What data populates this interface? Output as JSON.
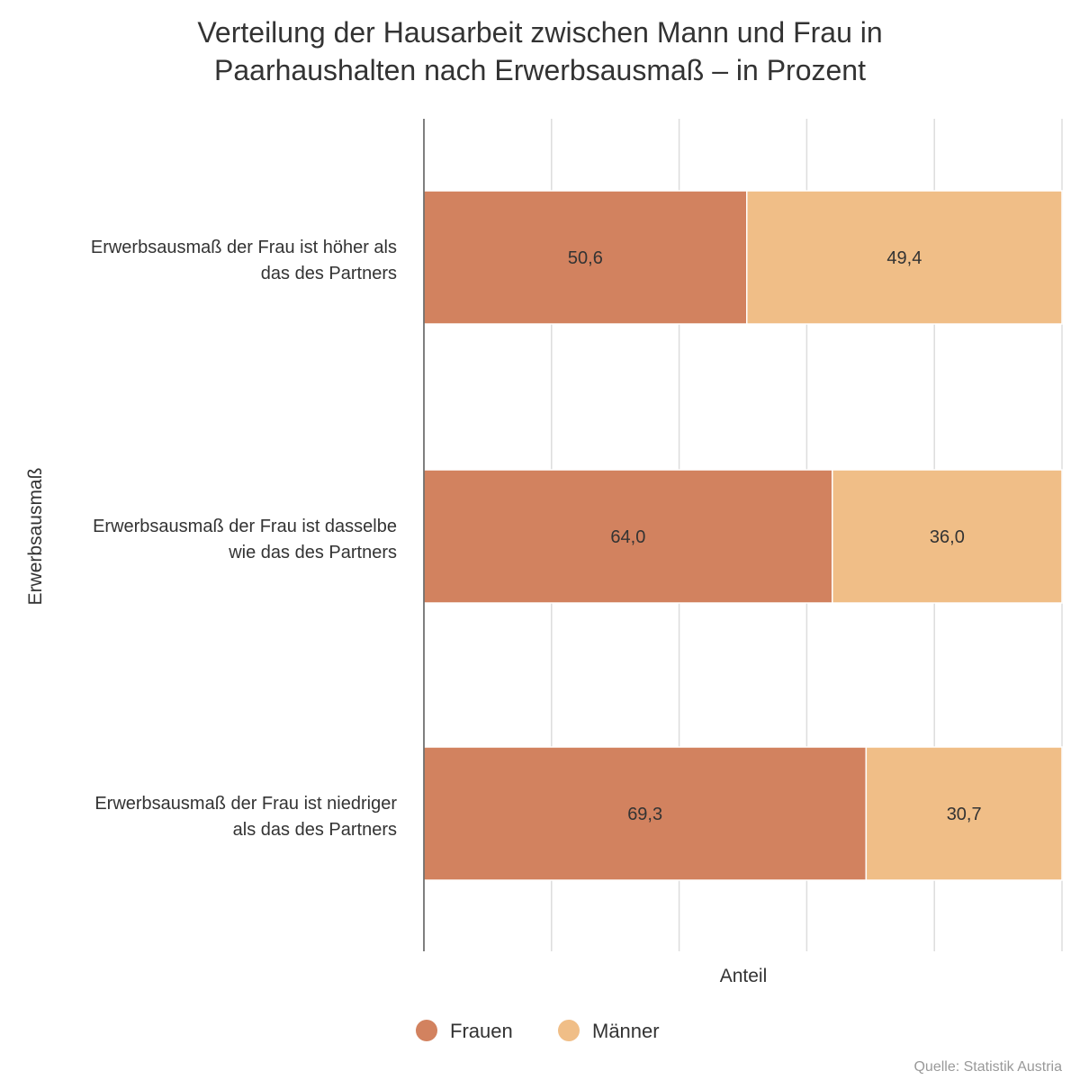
{
  "chart_data": {
    "type": "bar",
    "orientation": "horizontal",
    "stacked": true,
    "title": "Verteilung der Hausarbeit zwischen Mann und Frau in Paarhaushalten nach Erwerbsausmaß – in Prozent",
    "title_lines": [
      "Verteilung der Hausarbeit zwischen Mann und Frau in",
      "Paarhaushalten nach Erwerbsausmaß – in Prozent"
    ],
    "xlabel": "Anteil",
    "ylabel": "Erwerbsausmaß",
    "xlim": [
      0,
      100
    ],
    "grid": true,
    "legend_position": "bottom",
    "categories": [
      [
        "Erwerbsausmaß der Frau ist höher als",
        "das des Partners"
      ],
      [
        "Erwerbsausmaß der Frau ist dasselbe",
        "wie das des Partners"
      ],
      [
        "Erwerbsausmaß der Frau ist niedriger",
        "als das des Partners"
      ]
    ],
    "series": [
      {
        "name": "Frauen",
        "color": "#d2825f",
        "values": [
          50.6,
          64.0,
          69.3
        ],
        "labels": [
          "50,6",
          "64,0",
          "69,3"
        ]
      },
      {
        "name": "Männer",
        "color": "#f0be87",
        "values": [
          49.4,
          36.0,
          30.7
        ],
        "labels": [
          "49,4",
          "36,0",
          "30,7"
        ]
      }
    ],
    "source": "Quelle: Statistik Austria"
  }
}
